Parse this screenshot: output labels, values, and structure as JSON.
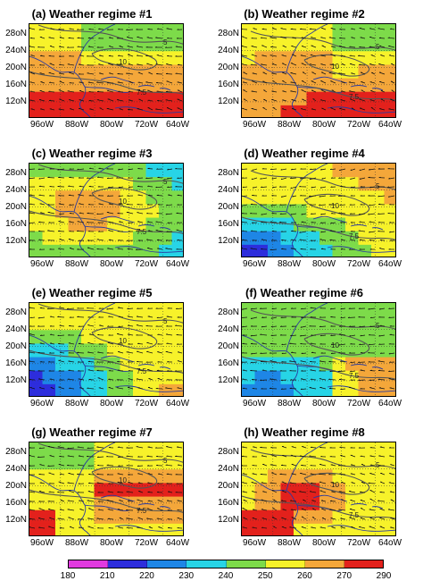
{
  "panels": [
    {
      "title": "(a) Weather regime #1",
      "theme": "hot_south"
    },
    {
      "title": "(b) Weather regime #2",
      "theme": "hot_east"
    },
    {
      "title": "(c) Weather regime #3",
      "theme": "hot_center"
    },
    {
      "title": "(d) Weather regime #4",
      "theme": "cold_sw"
    },
    {
      "title": "(e) Weather regime #5",
      "theme": "cold_west"
    },
    {
      "title": "(f) Weather regime #6",
      "theme": "mixed_cold"
    },
    {
      "title": "(g) Weather regime #7",
      "theme": "hot_band"
    },
    {
      "title": "(h) Weather regime #8",
      "theme": "hot_gulf"
    }
  ],
  "y_ticks": [
    "28oN",
    "24oN",
    "20oN",
    "16oN",
    "12oN"
  ],
  "x_ticks": [
    "96oW",
    "88oW",
    "80oW",
    "72oW",
    "64oW"
  ],
  "colorbar": {
    "ticks": [
      "180",
      "210",
      "220",
      "230",
      "240",
      "250",
      "260",
      "270",
      "290"
    ],
    "colors": [
      "#e23ae0",
      "#2d2ddc",
      "#1e86e6",
      "#27d4e6",
      "#7ddb4a",
      "#f7f22a",
      "#f4a73a",
      "#e3211c"
    ]
  },
  "contour_labels": [
    "5",
    "7.5",
    "10"
  ]
}
